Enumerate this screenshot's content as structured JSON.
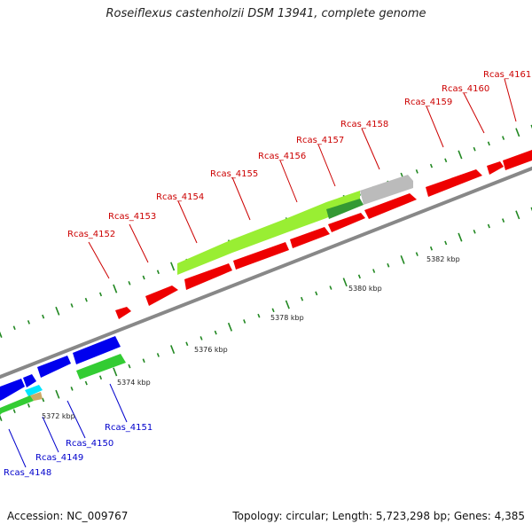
{
  "title": "Roseiflexus castenholzii DSM 13941, complete genome",
  "footer": {
    "accession": "Accession: NC_009767",
    "summary": "Topology: circular; Length: 5,723,298 bp; Genes: 4,385"
  },
  "colors": {
    "forward_strand": "#ff0000",
    "reverse_strand": "#0000ee",
    "label_forward": "#cc0000",
    "label_reverse": "#0000cc",
    "feature_green": "#33cc33",
    "feature_lightgreen": "#99ff33",
    "feature_grey": "#bbbbbb",
    "feature_cyan": "#00e5ff",
    "feature_tan": "#ccaa66",
    "backbone": "#888888",
    "tick_green": "#228822"
  },
  "chart_data": {
    "type": "genome-map",
    "position_labels": [
      "5372 kbp",
      "5374 kbp",
      "5376 kbp",
      "5378 kbp",
      "5380 kbp",
      "5382 kbp"
    ],
    "gene_labels_forward": [
      "Rcas_4152",
      "Rcas_4153",
      "Rcas_4154",
      "Rcas_4155",
      "Rcas_4156",
      "Rcas_4157",
      "Rcas_4158",
      "Rcas_4159",
      "Rcas_4160",
      "Rcas_4161"
    ],
    "gene_labels_reverse": [
      "Rcas_4148",
      "Rcas_4149",
      "Rcas_4150",
      "Rcas_4151"
    ]
  }
}
